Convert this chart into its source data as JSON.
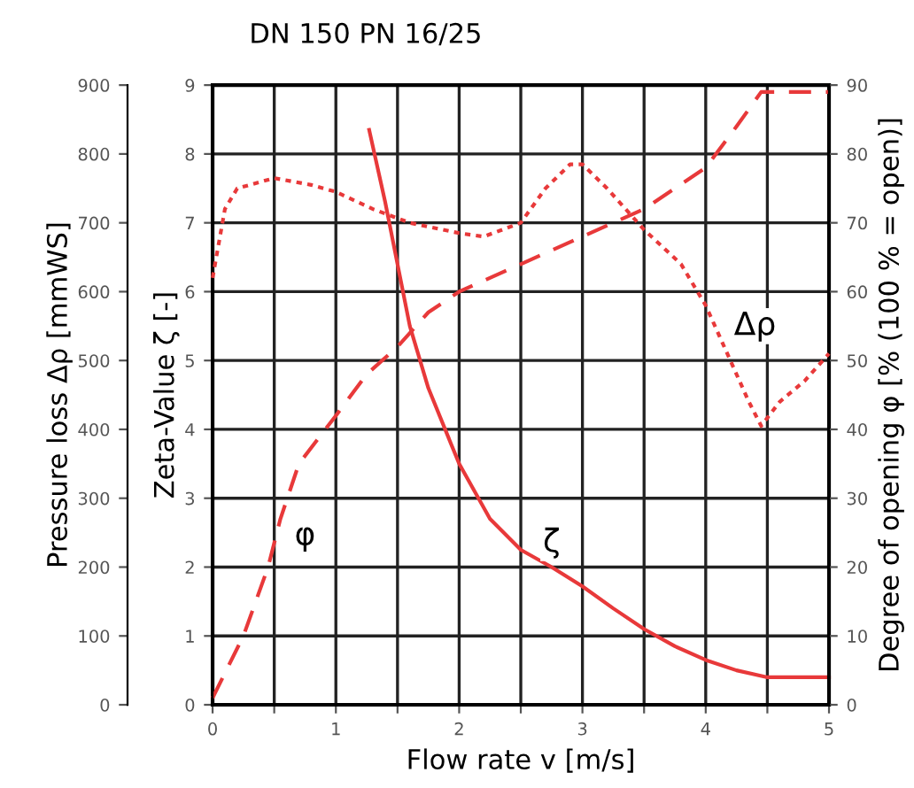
{
  "chart_data": {
    "type": "line",
    "title": "DN 150 PN 16/25",
    "xlabel": "Flow rate v [m/s]",
    "ylabel": "Zeta-Value ζ [-]",
    "y2label": "Degree of opening φ [% (100 % = open)]",
    "y3label": "Pressure loss Δρ [mmWS]",
    "xlim": [
      0,
      5
    ],
    "xticks": [
      0,
      {
        "value": 0.5,
        "label": null
      },
      1,
      {
        "value": 1.5,
        "label": null
      },
      2,
      {
        "value": 2.5,
        "label": null
      },
      3,
      {
        "value": 3.5,
        "label": null
      },
      4,
      {
        "value": 4.5,
        "label": null
      },
      5
    ],
    "ylim": [
      0,
      9
    ],
    "yticks": [
      0,
      1,
      2,
      3,
      4,
      5,
      6,
      7,
      8,
      9
    ],
    "y2lim": [
      0,
      90
    ],
    "y2ticks": [
      0,
      10,
      20,
      30,
      40,
      50,
      60,
      70,
      80,
      90
    ],
    "y3lim": [
      0,
      900
    ],
    "y3ticks": [
      0,
      100,
      200,
      300,
      400,
      500,
      600,
      700,
      800,
      900
    ],
    "grid": true,
    "marker": "none",
    "series": [
      {
        "axis": "y3",
        "line_style": "dotted",
        "color": "#e8393a",
        "x": [
          0,
          0.1,
          0.2,
          0.5,
          0.8,
          1,
          1.3,
          1.6,
          2,
          2.2,
          2.5,
          2.7,
          2.9,
          3.0,
          3.2,
          3.5,
          3.8,
          4.0,
          4.2,
          4.35,
          4.45,
          4.6,
          4.8,
          5
        ],
        "values": [
          620,
          720,
          750,
          765,
          755,
          745,
          720,
          700,
          685,
          680,
          700,
          750,
          785,
          785,
          750,
          690,
          640,
          580,
          500,
          440,
          405,
          440,
          470,
          510
        ]
      },
      {
        "axis": "y2",
        "line_style": "dashed",
        "color": "#e8393a",
        "x": [
          0,
          0.25,
          0.45,
          0.55,
          0.7,
          1,
          1.25,
          1.5,
          1.75,
          2,
          2.5,
          3,
          3.5,
          4,
          4.25,
          4.45,
          5
        ],
        "values": [
          1,
          10,
          20,
          27,
          35,
          42,
          48,
          52,
          57,
          60,
          64,
          68,
          72,
          78,
          84,
          89,
          89
        ]
      },
      {
        "axis": "y",
        "line_style": "solid",
        "color": "#e8393a",
        "x": [
          1.27,
          1.4,
          1.5,
          1.6,
          1.75,
          2,
          2.25,
          2.5,
          2.75,
          3,
          3.25,
          3.5,
          3.75,
          4,
          4.25,
          4.5,
          5
        ],
        "values": [
          8.35,
          7.3,
          6.4,
          5.5,
          4.6,
          3.5,
          2.7,
          2.25,
          2.0,
          1.72,
          1.4,
          1.1,
          0.85,
          0.65,
          0.5,
          0.4,
          0.4
        ]
      }
    ],
    "annotations": [
      {
        "text": "φ",
        "x": 0.75,
        "y": 2.45
      },
      {
        "text": "ζ",
        "x": 2.75,
        "y": 2.35
      },
      {
        "text": "Δρ",
        "x": 4.4,
        "y": 5.5
      }
    ]
  }
}
